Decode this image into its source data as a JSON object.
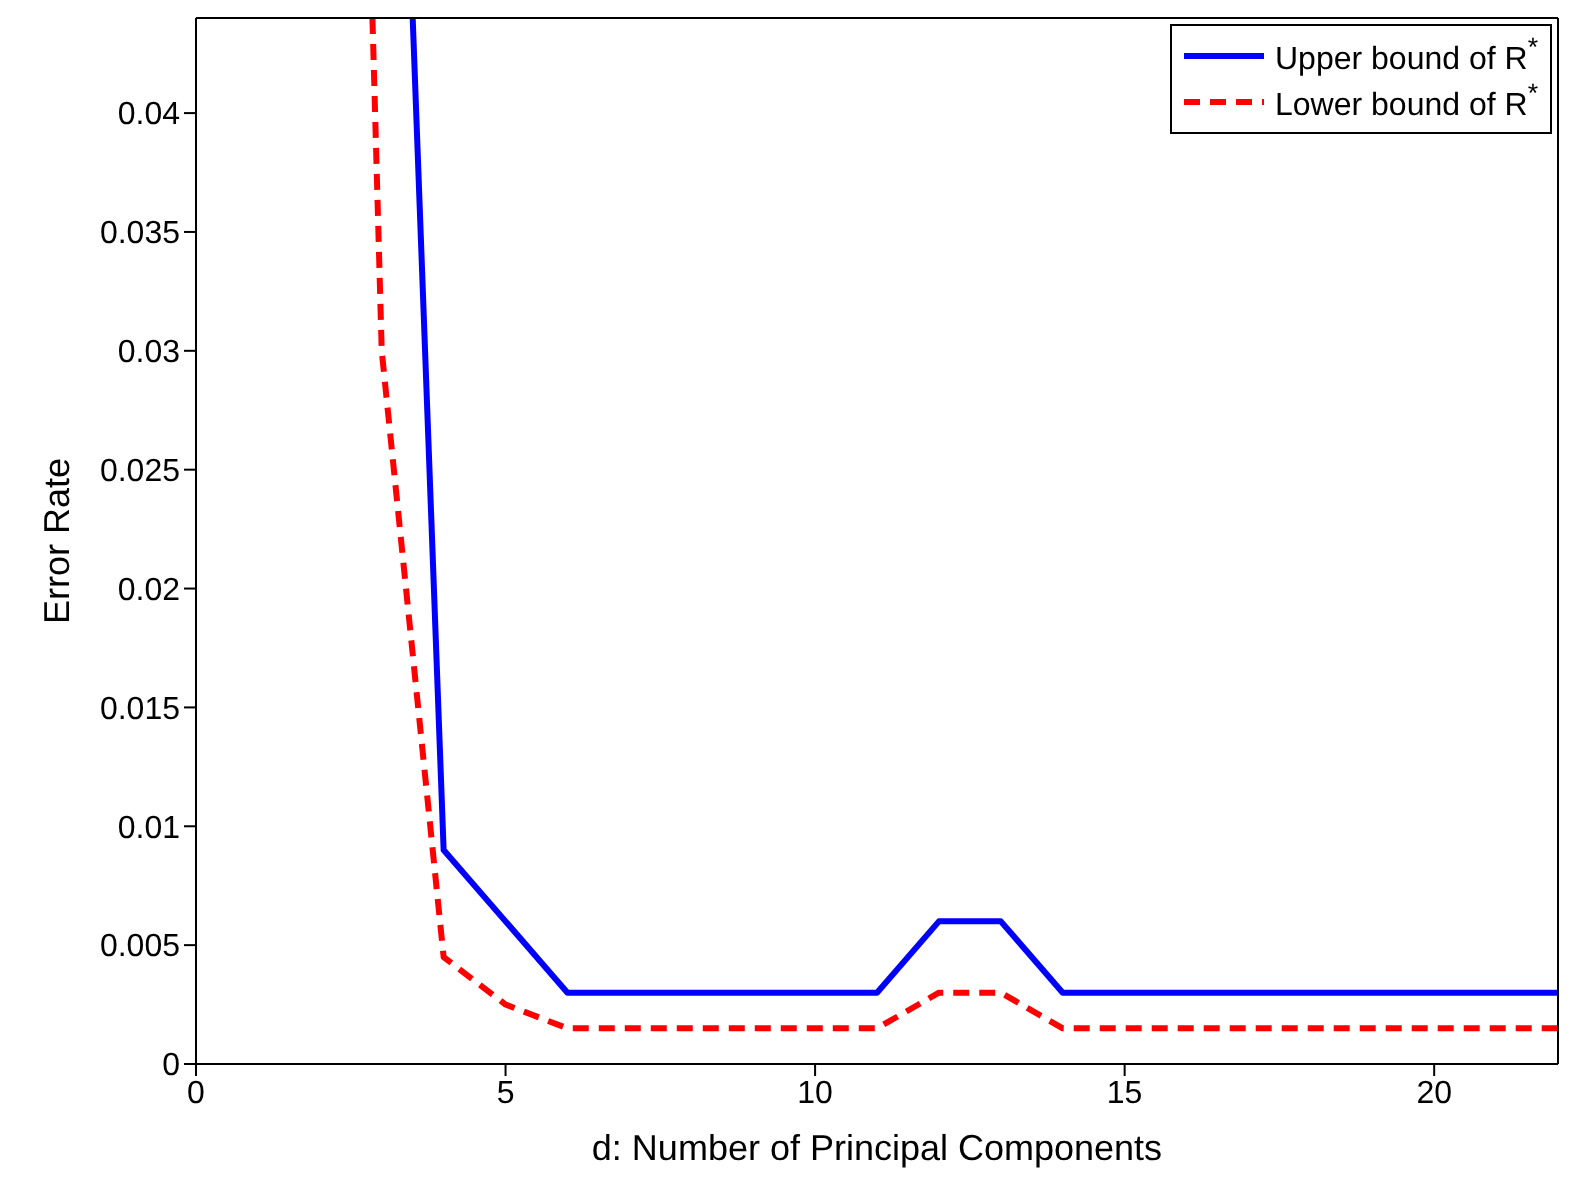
{
  "chart_data": {
    "type": "line",
    "xlabel": "d: Number of Principal Components",
    "ylabel": "Error Rate",
    "xlim": [
      0,
      22
    ],
    "xticks": [
      0,
      5,
      10,
      15,
      20
    ],
    "ylim": [
      0,
      0.044
    ],
    "yticks": [
      0,
      0.005,
      0.01,
      0.015,
      0.02,
      0.025,
      0.03,
      0.035,
      0.04
    ],
    "legend": "top right",
    "marker": "none",
    "series": [
      {
        "name": "Upper bound of R$^{*}$",
        "color": "#0000ff",
        "line_style": "solid",
        "x": [
          3.5,
          4,
          6,
          11,
          12,
          13,
          14,
          22
        ],
        "values": [
          0.044,
          0.009,
          0.003,
          0.003,
          0.006,
          0.006,
          0.003,
          0.003
        ]
      },
      {
        "name": "Lower bound of R$^{*}$",
        "color": "#ff0000",
        "line_style": "dashed",
        "x": [
          2.85,
          3,
          4,
          5,
          6,
          11,
          12,
          13,
          14,
          22
        ],
        "values": [
          0.044,
          0.03,
          0.0045,
          0.0025,
          0.0015,
          0.0015,
          0.003,
          0.003,
          0.0015,
          0.0015
        ]
      }
    ]
  }
}
